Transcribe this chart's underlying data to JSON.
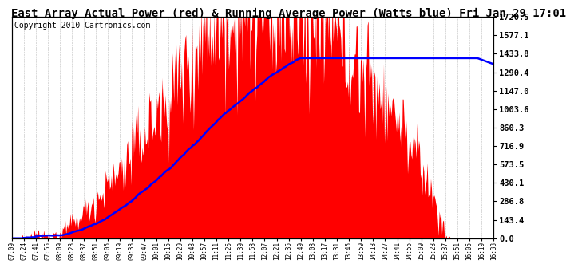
{
  "title": "East Array Actual Power (red) & Running Average Power (Watts blue) Fri Jan 29 17:01",
  "copyright": "Copyright 2010 Cartronics.com",
  "ylabel_values": [
    0.0,
    143.4,
    286.8,
    430.1,
    573.5,
    716.9,
    860.3,
    1003.6,
    1147.0,
    1290.4,
    1433.8,
    1577.1,
    1720.5
  ],
  "ymax": 1720.5,
  "ymin": 0.0,
  "x_labels": [
    "07:09",
    "07:24",
    "07:41",
    "07:55",
    "08:09",
    "08:23",
    "08:37",
    "08:51",
    "09:05",
    "09:19",
    "09:33",
    "09:47",
    "10:01",
    "10:15",
    "10:29",
    "10:43",
    "10:57",
    "11:11",
    "11:25",
    "11:39",
    "11:53",
    "12:07",
    "12:21",
    "12:35",
    "12:49",
    "13:03",
    "13:17",
    "13:31",
    "13:45",
    "13:59",
    "14:13",
    "14:27",
    "14:41",
    "14:55",
    "15:09",
    "15:23",
    "15:37",
    "15:51",
    "16:05",
    "16:19",
    "16:33"
  ],
  "background_color": "#ffffff",
  "plot_background": "#ffffff",
  "grid_color": "#aaaaaa",
  "bar_color": "#ff0000",
  "line_color": "#0000ff",
  "title_fontsize": 10,
  "copyright_fontsize": 7,
  "title_font": "monospace",
  "label_font": "monospace"
}
